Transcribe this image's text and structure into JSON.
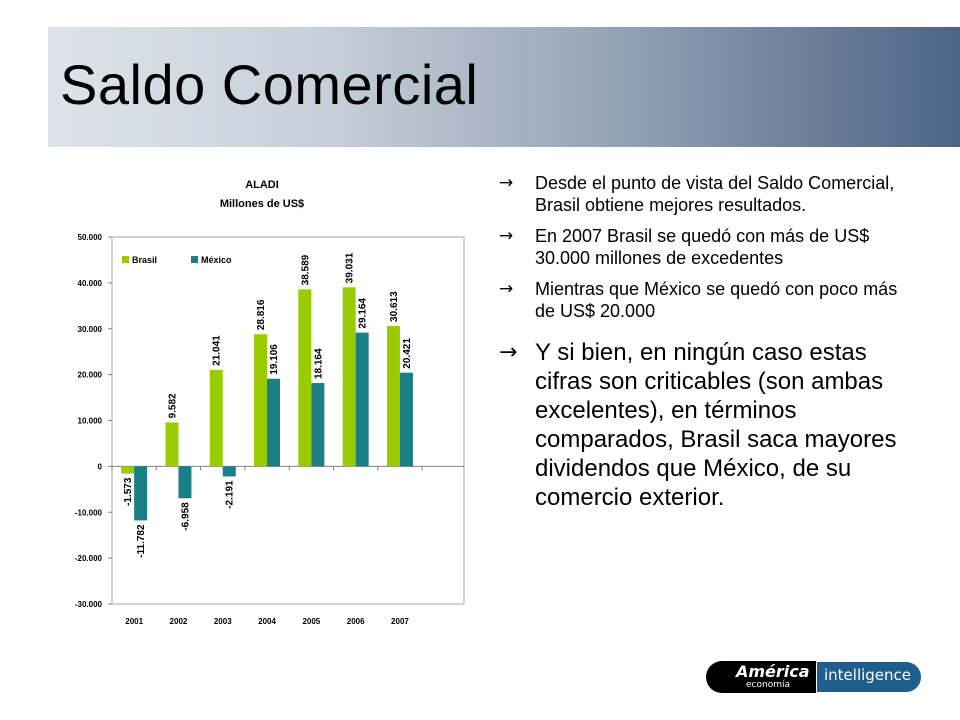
{
  "slide": {
    "title": "Saldo Comercial"
  },
  "bullets": [
    "Desde el punto de vista del Saldo Comercial, Brasil obtiene mejores resultados.",
    "En 2007 Brasil se quedó con más de US$ 30.000 millones de excedentes",
    "Mientras que México se quedó con poco más de US$ 20.000",
    "Y si bien, en ningún caso estas cifras son criticables (son ambas excelentes), en términos comparados, Brasil saca mayores dividendos que México, de su comercio exterior."
  ],
  "bullet_icon": "arrow-right-icon",
  "logo": {
    "brand": "América",
    "brand_sub": "economía",
    "tag": "intelligence"
  },
  "colors": {
    "brasil": "#99cc00",
    "mexico": "#1b7f86",
    "title_band_end": "#4d6485"
  },
  "chart_data": {
    "type": "bar",
    "title": "ALADI",
    "subtitle": "Millones de US$",
    "categories": [
      "2001",
      "2002",
      "2003",
      "2004",
      "2005",
      "2006",
      "2007"
    ],
    "series": [
      {
        "name": "Brasil",
        "values": [
          -1573,
          9582,
          21041,
          28816,
          38589,
          39031,
          30613
        ],
        "labels": [
          "-1.573",
          "9.582",
          "21.041",
          "28.816",
          "38.589",
          "39.031",
          "30.613"
        ]
      },
      {
        "name": "México",
        "values": [
          -11782,
          -6958,
          -2191,
          19106,
          18164,
          29164,
          20421
        ],
        "labels": [
          "-11.782",
          "-6.958",
          "-2.191",
          "19.106",
          "18.164",
          "29.164",
          "20.421"
        ]
      }
    ],
    "ylim": [
      -30000,
      50000
    ],
    "yticks": [
      50000,
      40000,
      30000,
      20000,
      10000,
      0,
      -10000,
      -20000,
      -30000
    ],
    "ytick_labels": [
      "50.000",
      "40.000",
      "30.000",
      "20.000",
      "10.000",
      "0",
      "-10.000",
      "-20.000",
      "-30.000"
    ],
    "legend_position": "top-left",
    "grid": false
  }
}
